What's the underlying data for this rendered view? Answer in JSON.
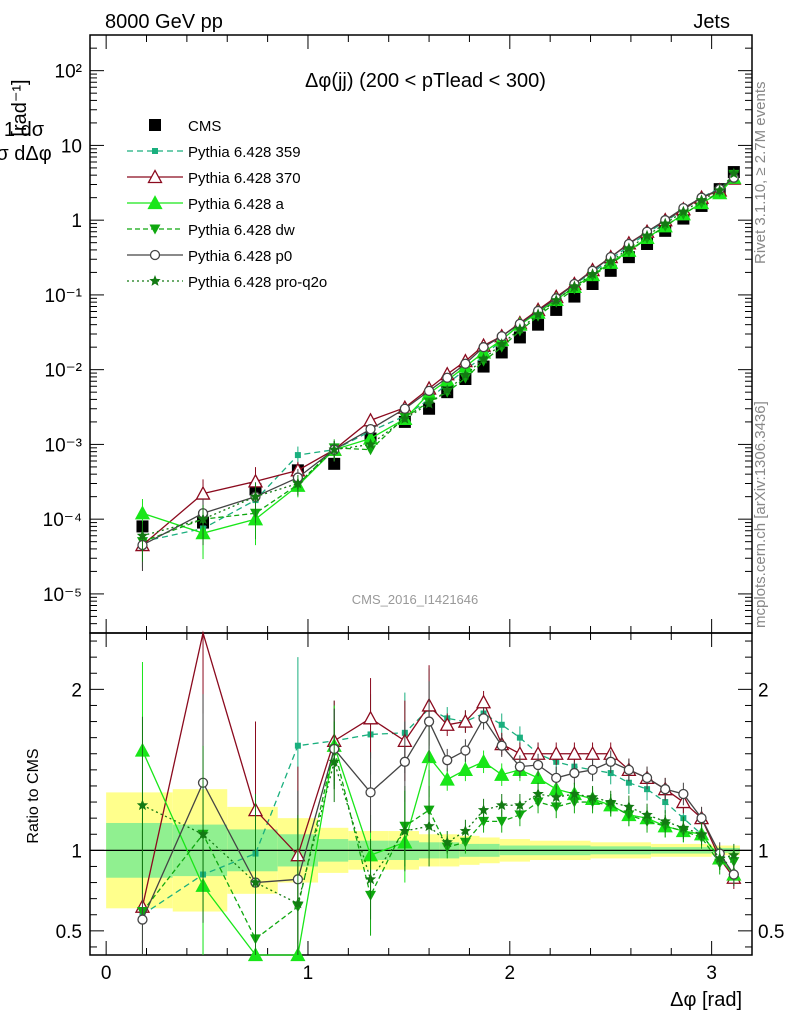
{
  "header": {
    "left": "8000 GeV pp",
    "right": "Jets"
  },
  "side_labels": {
    "top": "Rivet 3.1.10, ≥ 2.7M events",
    "bottom": "mcplots.cern.ch [arXiv:1306.3436]"
  },
  "watermark": "CMS_2016_I1421646",
  "chart_data": [
    {
      "type": "scatter",
      "title": "Δφ(jj) (200 < pTlead <  300)",
      "xlabel": "Δφ [rad]",
      "ylabel_frac_num": "1 dσ",
      "ylabel_frac_den": "σ dΔφ",
      "ylabel_unit": "[rad⁻¹]",
      "yscale": "log",
      "ylim": [
        3e-06,
        300
      ],
      "xlim": [
        -0.08,
        3.2
      ],
      "yticks": [
        {
          "value": 1e-05,
          "label": "10⁻⁵"
        },
        {
          "value": 0.0001,
          "label": "10⁻⁴"
        },
        {
          "value": 0.001,
          "label": "10⁻³"
        },
        {
          "value": 0.01,
          "label": "10⁻²"
        },
        {
          "value": 0.1,
          "label": "10⁻¹"
        },
        {
          "value": 1,
          "label": "1"
        },
        {
          "value": 10,
          "label": "10"
        },
        {
          "value": 100,
          "label": "10²"
        }
      ],
      "legend_position": "top-left",
      "x": [
        0.18,
        0.48,
        0.74,
        0.95,
        1.13,
        1.31,
        1.48,
        1.6,
        1.69,
        1.78,
        1.87,
        1.96,
        2.05,
        2.14,
        2.23,
        2.32,
        2.41,
        2.5,
        2.59,
        2.68,
        2.77,
        2.86,
        2.95,
        3.04,
        3.11
      ],
      "series": [
        {
          "name": "CMS",
          "color": "#000000",
          "marker": "square",
          "dash": "none",
          "values": [
            8e-05,
            9e-05,
            0.00025,
            0.00045,
            0.00055,
            0.0012,
            0.002,
            0.003,
            0.005,
            0.0075,
            0.011,
            0.017,
            0.027,
            0.04,
            0.063,
            0.095,
            0.14,
            0.21,
            0.32,
            0.48,
            0.72,
            1.05,
            1.55,
            2.6,
            4.4
          ]
        },
        {
          "name": "Pythia 6.428 359",
          "color": "#1aaf7e",
          "marker": "smallsquare",
          "dash": "6,4",
          "values": [
            5e-05,
            7.5e-05,
            0.00018,
            0.00072,
            0.00085,
            0.0015,
            0.0024,
            0.004,
            0.0065,
            0.01,
            0.015,
            0.025,
            0.04,
            0.06,
            0.092,
            0.14,
            0.2,
            0.3,
            0.45,
            0.67,
            0.96,
            1.38,
            2.0,
            2.7,
            3.6
          ]
        },
        {
          "name": "Pythia 6.428 370",
          "color": "#8b0a1e",
          "marker": "triangle-open",
          "dash": "none",
          "values": [
            4.5e-05,
            0.00022,
            0.00032,
            0.00045,
            0.00085,
            0.0021,
            0.0031,
            0.0056,
            0.0087,
            0.013,
            0.021,
            0.028,
            0.042,
            0.063,
            0.094,
            0.14,
            0.215,
            0.32,
            0.49,
            0.7,
            1.0,
            1.4,
            2.0,
            2.5,
            3.6
          ]
        },
        {
          "name": "Pythia 6.428 a",
          "color": "#19e619",
          "marker": "triangle",
          "dash": "none",
          "values": [
            0.00012,
            6.5e-05,
            0.0001,
            0.00028,
            0.00085,
            0.0012,
            0.0022,
            0.0048,
            0.0072,
            0.011,
            0.017,
            0.025,
            0.04,
            0.058,
            0.086,
            0.128,
            0.185,
            0.27,
            0.39,
            0.58,
            0.83,
            1.2,
            1.7,
            2.3,
            3.7
          ]
        },
        {
          "name": "Pythia 6.428 dw",
          "color": "#0fa80f",
          "marker": "triangle-down",
          "dash": "5,3",
          "values": [
            5e-05,
            0.0001,
            0.00012,
            0.00029,
            0.0009,
            0.00085,
            0.0023,
            0.0037,
            0.005,
            0.0077,
            0.013,
            0.02,
            0.033,
            0.052,
            0.08,
            0.12,
            0.18,
            0.26,
            0.38,
            0.57,
            0.83,
            1.2,
            1.7,
            2.4,
            4.1
          ]
        },
        {
          "name": "Pythia 6.428 p0",
          "color": "#444444",
          "marker": "circle-open",
          "dash": "none",
          "values": [
            4.5e-05,
            0.00012,
            0.0002,
            0.00036,
            0.00085,
            0.0016,
            0.003,
            0.0052,
            0.0078,
            0.012,
            0.02,
            0.028,
            0.041,
            0.061,
            0.09,
            0.14,
            0.21,
            0.32,
            0.48,
            0.7,
            1.0,
            1.45,
            2.0,
            2.6,
            3.7
          ]
        },
        {
          "name": "Pythia 6.428 pro-q2o",
          "color": "#137a13",
          "marker": "star",
          "dash": "2,3",
          "values": [
            6e-05,
            0.0001,
            0.0002,
            0.0003,
            0.00085,
            0.001,
            0.0022,
            0.0035,
            0.0053,
            0.0085,
            0.014,
            0.022,
            0.035,
            0.055,
            0.085,
            0.13,
            0.19,
            0.28,
            0.42,
            0.62,
            0.9,
            1.3,
            1.85,
            2.5,
            4.2
          ]
        }
      ]
    },
    {
      "type": "scatter",
      "ylabel": "Ratio to CMS",
      "xlabel": "Δφ [rad]",
      "ylim": [
        0.35,
        2.35
      ],
      "xlim": [
        -0.08,
        3.2
      ],
      "yticks": [
        {
          "value": 0.5,
          "label": "0.5"
        },
        {
          "value": 1,
          "label": "1"
        },
        {
          "value": 2,
          "label": "2"
        }
      ],
      "xticks": [
        {
          "value": 0,
          "label": "0"
        },
        {
          "value": 1,
          "label": "1"
        },
        {
          "value": 2,
          "label": "2"
        },
        {
          "value": 3,
          "label": "3"
        }
      ],
      "bands": {
        "edges": [
          0.0,
          0.33,
          0.6,
          0.85,
          1.05,
          1.2,
          1.4,
          1.55,
          1.65,
          1.75,
          1.85,
          1.95,
          2.1,
          2.4,
          2.7,
          3.0,
          3.14
        ],
        "yellow_half": [
          0.36,
          0.38,
          0.27,
          0.2,
          0.14,
          0.12,
          0.12,
          0.1,
          0.1,
          0.09,
          0.08,
          0.07,
          0.06,
          0.05,
          0.04,
          0.03
        ],
        "green_half": [
          0.17,
          0.16,
          0.13,
          0.1,
          0.07,
          0.06,
          0.06,
          0.05,
          0.05,
          0.04,
          0.04,
          0.03,
          0.03,
          0.025,
          0.02,
          0.015
        ]
      },
      "series": [
        {
          "name": "Pythia 6.428 359",
          "values": [
            0.6,
            0.85,
            0.98,
            1.65,
            1.68,
            1.72,
            1.73,
            1.88,
            1.82,
            1.8,
            1.85,
            1.78,
            1.7,
            1.6,
            1.55,
            1.52,
            1.5,
            1.48,
            1.42,
            1.38,
            1.3,
            1.2,
            1.1,
            0.95,
            0.85
          ]
        },
        {
          "name": "Pythia 6.428 370",
          "values": [
            0.65,
            2.4,
            1.25,
            0.97,
            1.68,
            1.82,
            1.68,
            1.9,
            1.78,
            1.8,
            1.92,
            1.66,
            1.6,
            1.6,
            1.6,
            1.6,
            1.6,
            1.6,
            1.5,
            1.45,
            1.38,
            1.3,
            1.2,
            0.95,
            0.83
          ]
        },
        {
          "name": "Pythia 6.428 a",
          "values": [
            1.62,
            0.78,
            0.35,
            0.35,
            1.65,
            0.97,
            1.05,
            1.58,
            1.44,
            1.5,
            1.55,
            1.47,
            1.5,
            1.45,
            1.38,
            1.35,
            1.32,
            1.28,
            1.22,
            1.2,
            1.15,
            1.12,
            1.1,
            0.95,
            0.85
          ]
        },
        {
          "name": "Pythia 6.428 dw",
          "values": [
            0.62,
            1.1,
            0.45,
            0.65,
            1.63,
            0.72,
            1.15,
            1.25,
            1.02,
            1.05,
            1.18,
            1.18,
            1.22,
            1.3,
            1.27,
            1.3,
            1.3,
            1.28,
            1.22,
            1.18,
            1.15,
            1.12,
            1.08,
            0.92,
            0.93
          ]
        },
        {
          "name": "Pythia 6.428 p0",
          "values": [
            0.57,
            1.42,
            0.8,
            0.82,
            1.63,
            1.36,
            1.55,
            1.8,
            1.56,
            1.62,
            1.82,
            1.65,
            1.52,
            1.53,
            1.45,
            1.48,
            1.5,
            1.55,
            1.5,
            1.45,
            1.38,
            1.35,
            1.2,
            0.98,
            0.85
          ]
        },
        {
          "name": "Pythia 6.428 pro-q2o",
          "values": [
            1.28,
            1.1,
            0.8,
            0.67,
            1.55,
            0.82,
            1.12,
            1.15,
            1.05,
            1.12,
            1.25,
            1.28,
            1.28,
            1.35,
            1.33,
            1.35,
            1.33,
            1.3,
            1.27,
            1.22,
            1.18,
            1.14,
            1.1,
            0.95,
            0.97
          ]
        }
      ]
    }
  ]
}
